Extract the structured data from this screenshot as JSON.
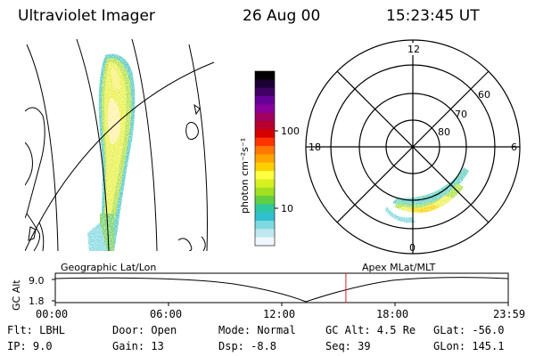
{
  "header": {
    "instrument": "Ultraviolet Imager",
    "date": "26 Aug 00",
    "time": "15:23:45 UT"
  },
  "colorbar": {
    "label": "photon cm⁻²s⁻¹",
    "ticks": [
      "100",
      "10"
    ],
    "colors": [
      "#000000",
      "#1a0033",
      "#400066",
      "#660099",
      "#8a0099",
      "#a00060",
      "#b80030",
      "#d40000",
      "#ff3300",
      "#ff7700",
      "#ffa500",
      "#ffd000",
      "#ffff40",
      "#d8f020",
      "#a0e020",
      "#60d040",
      "#30c8a0",
      "#30c0d0",
      "#80d8e0",
      "#c0e8f0",
      "#f0f8ff"
    ]
  },
  "polar": {
    "mlt_labels": [
      "12",
      "18",
      "6",
      "0"
    ],
    "lat_labels": [
      "60",
      "70",
      "80"
    ]
  },
  "timeline": {
    "ylabel": "GC Alt",
    "y_ticks": [
      "9.0",
      "1.8"
    ],
    "left_caption": "Geographic Lat/Lon",
    "right_caption": "Apex MLat/MLT",
    "x_ticks": [
      "00:00",
      "06:00",
      "12:00",
      "18:00",
      "23:59"
    ],
    "current_time_fraction": 0.6415
  },
  "info": {
    "filter": "Flt: LBHL",
    "door": "Door: Open",
    "mode": "Mode: Normal",
    "gc_alt": "GC Alt: 4.5 Re",
    "glat": "GLat: -56.0",
    "ip": "IP:  9.0",
    "gain": "Gain: 13",
    "dsp": "Dsp:   -8.8",
    "seq": "Seq: 39",
    "glon": "GLon: 145.1"
  }
}
